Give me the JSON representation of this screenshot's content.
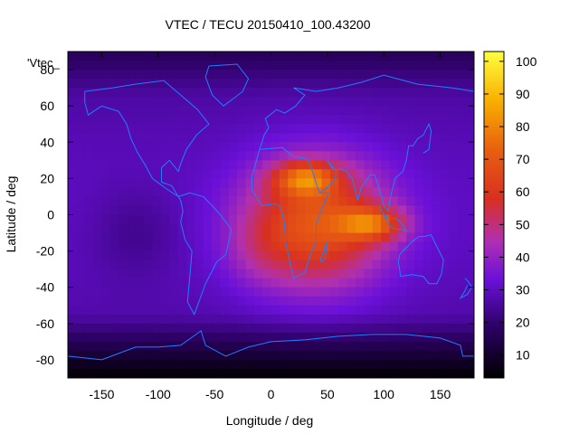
{
  "chart_data": {
    "type": "heatmap",
    "title": "VTEC / TECU 20150410_100.43200",
    "xlabel": "Longitude / deg",
    "ylabel": "Latitude / deg",
    "xlim": [
      -180,
      180
    ],
    "ylim": [
      -90,
      90
    ],
    "x_ticks": [
      "-150",
      "-100",
      "-50",
      "0",
      "50",
      "100",
      "150"
    ],
    "x_tick_values": [
      -150,
      -100,
      -50,
      0,
      50,
      100,
      150
    ],
    "y_ticks": [
      "80",
      "60",
      "40",
      "20",
      "0",
      "-20",
      "-40",
      "-60",
      "-80"
    ],
    "y_tick_values": [
      80,
      60,
      40,
      20,
      0,
      -20,
      -40,
      -60,
      -80
    ],
    "colorbar": {
      "range": [
        3,
        103
      ],
      "ticks": [
        "100",
        "90",
        "80",
        "70",
        "60",
        "50",
        "40",
        "30",
        "20",
        "10"
      ],
      "tick_values": [
        100,
        90,
        80,
        70,
        60,
        50,
        40,
        30,
        20,
        10
      ],
      "palette": "black-purple-red-orange-yellow"
    },
    "legend_fragment": "'Vtec_",
    "overlay": "coastlines",
    "coastline_color": "#1f7fff",
    "peak_regions": [
      {
        "lon": 30,
        "lat": 20,
        "vtec": 95
      },
      {
        "lon": 90,
        "lat": -5,
        "vtec": 95
      }
    ]
  }
}
